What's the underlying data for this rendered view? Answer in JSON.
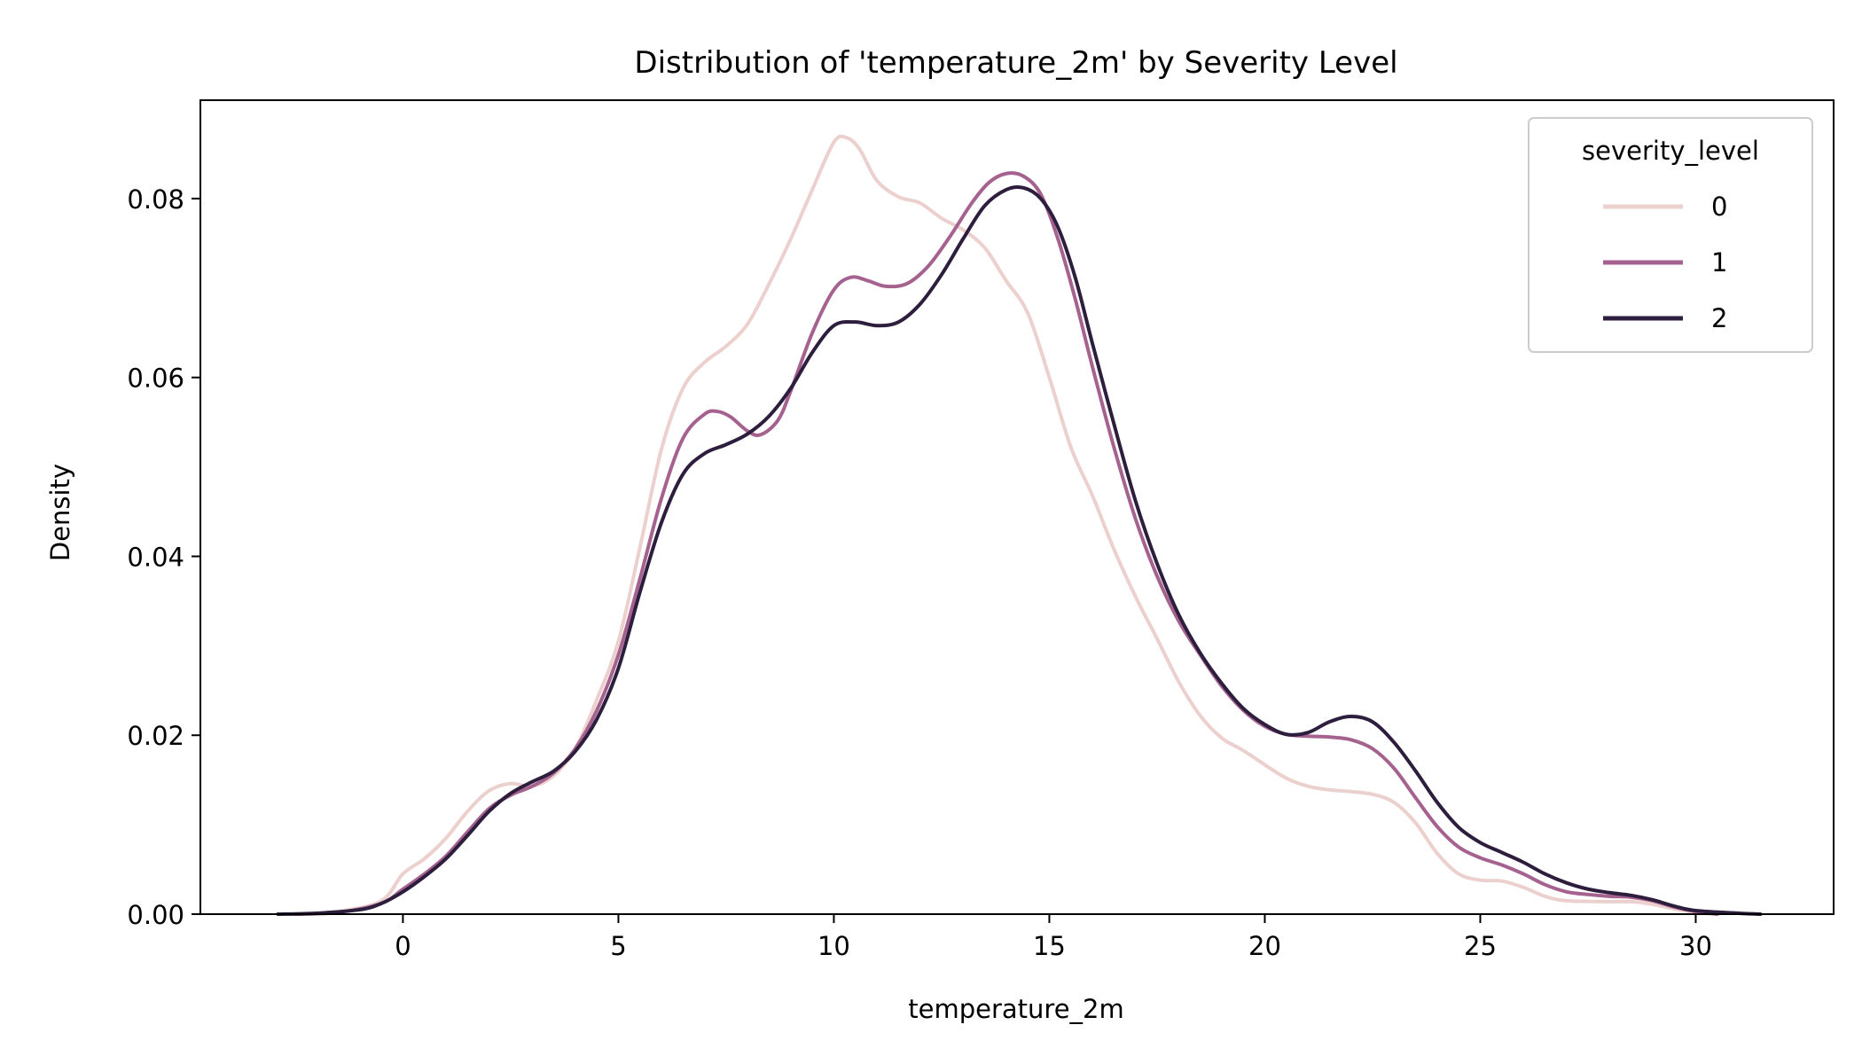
{
  "chart_data": {
    "type": "line",
    "title": "Distribution of 'temperature_2m' by Severity Level",
    "xlabel": "temperature_2m",
    "ylabel": "Density",
    "xlim": [
      -4.7,
      33.2
    ],
    "ylim": [
      0,
      0.091
    ],
    "xticks": [
      0,
      5,
      10,
      15,
      20,
      25,
      30
    ],
    "yticks": [
      0.0,
      0.02,
      0.04,
      0.06,
      0.08
    ],
    "ytick_labels": [
      "0.00",
      "0.02",
      "0.04",
      "0.06",
      "0.08"
    ],
    "grid": false,
    "legend": {
      "title": "severity_level",
      "placement": "top-right"
    },
    "series": [
      {
        "name": "0",
        "color": "#ebd0cd",
        "points": [
          [
            -2.5,
            0.0
          ],
          [
            -1.5,
            0.0003
          ],
          [
            -0.5,
            0.0015
          ],
          [
            0.0,
            0.0045
          ],
          [
            0.5,
            0.0062
          ],
          [
            1.0,
            0.0085
          ],
          [
            1.5,
            0.0115
          ],
          [
            2.0,
            0.0138
          ],
          [
            2.5,
            0.0146
          ],
          [
            3.0,
            0.0143
          ],
          [
            3.5,
            0.0155
          ],
          [
            4.0,
            0.0185
          ],
          [
            4.5,
            0.024
          ],
          [
            5.0,
            0.0305
          ],
          [
            5.5,
            0.041
          ],
          [
            6.0,
            0.052
          ],
          [
            6.5,
            0.0588
          ],
          [
            7.0,
            0.0617
          ],
          [
            7.5,
            0.0635
          ],
          [
            8.0,
            0.066
          ],
          [
            8.5,
            0.0705
          ],
          [
            9.0,
            0.0755
          ],
          [
            9.5,
            0.081
          ],
          [
            10.0,
            0.0863
          ],
          [
            10.3,
            0.0868
          ],
          [
            10.6,
            0.0855
          ],
          [
            11.0,
            0.082
          ],
          [
            11.5,
            0.0802
          ],
          [
            12.0,
            0.0795
          ],
          [
            12.5,
            0.0778
          ],
          [
            13.0,
            0.0765
          ],
          [
            13.5,
            0.0745
          ],
          [
            14.0,
            0.0708
          ],
          [
            14.5,
            0.0672
          ],
          [
            15.0,
            0.06
          ],
          [
            15.5,
            0.0522
          ],
          [
            16.0,
            0.0468
          ],
          [
            16.5,
            0.0408
          ],
          [
            17.0,
            0.0355
          ],
          [
            17.5,
            0.0308
          ],
          [
            18.0,
            0.026
          ],
          [
            18.5,
            0.0222
          ],
          [
            19.0,
            0.0197
          ],
          [
            19.5,
            0.0183
          ],
          [
            20.0,
            0.0167
          ],
          [
            20.5,
            0.0152
          ],
          [
            21.0,
            0.0143
          ],
          [
            21.5,
            0.0139
          ],
          [
            22.0,
            0.0137
          ],
          [
            22.5,
            0.0134
          ],
          [
            23.0,
            0.0125
          ],
          [
            23.5,
            0.0102
          ],
          [
            24.0,
            0.0068
          ],
          [
            24.5,
            0.0045
          ],
          [
            25.0,
            0.0038
          ],
          [
            25.5,
            0.0037
          ],
          [
            26.0,
            0.003
          ],
          [
            26.5,
            0.002
          ],
          [
            27.0,
            0.0015
          ],
          [
            28.0,
            0.0014
          ],
          [
            28.5,
            0.0014
          ],
          [
            29.0,
            0.0011
          ],
          [
            29.5,
            0.0006
          ],
          [
            30.0,
            0.0002
          ],
          [
            30.5,
            0.0
          ]
        ]
      },
      {
        "name": "1",
        "color": "#a6628f",
        "points": [
          [
            -2.5,
            0.0
          ],
          [
            -1.5,
            0.0002
          ],
          [
            -0.5,
            0.0012
          ],
          [
            0.0,
            0.0028
          ],
          [
            0.5,
            0.0045
          ],
          [
            1.0,
            0.0065
          ],
          [
            1.5,
            0.0092
          ],
          [
            2.0,
            0.0118
          ],
          [
            2.5,
            0.0133
          ],
          [
            3.0,
            0.0143
          ],
          [
            3.5,
            0.0158
          ],
          [
            4.0,
            0.0185
          ],
          [
            4.5,
            0.0228
          ],
          [
            5.0,
            0.029
          ],
          [
            5.5,
            0.0375
          ],
          [
            6.0,
            0.0465
          ],
          [
            6.5,
            0.0532
          ],
          [
            7.0,
            0.0559
          ],
          [
            7.3,
            0.0562
          ],
          [
            7.6,
            0.0556
          ],
          [
            8.0,
            0.054
          ],
          [
            8.3,
            0.0536
          ],
          [
            8.7,
            0.0552
          ],
          [
            9.0,
            0.0585
          ],
          [
            9.5,
            0.065
          ],
          [
            10.0,
            0.0698
          ],
          [
            10.4,
            0.0712
          ],
          [
            10.8,
            0.0708
          ],
          [
            11.2,
            0.0702
          ],
          [
            11.7,
            0.0705
          ],
          [
            12.2,
            0.0725
          ],
          [
            12.7,
            0.0758
          ],
          [
            13.2,
            0.0795
          ],
          [
            13.6,
            0.0818
          ],
          [
            14.0,
            0.0828
          ],
          [
            14.4,
            0.0825
          ],
          [
            14.8,
            0.0805
          ],
          [
            15.2,
            0.0755
          ],
          [
            15.6,
            0.0688
          ],
          [
            16.0,
            0.0612
          ],
          [
            16.5,
            0.0522
          ],
          [
            17.0,
            0.0442
          ],
          [
            17.5,
            0.0378
          ],
          [
            18.0,
            0.0328
          ],
          [
            18.5,
            0.029
          ],
          [
            19.0,
            0.0255
          ],
          [
            19.5,
            0.0228
          ],
          [
            20.0,
            0.021
          ],
          [
            20.5,
            0.0201
          ],
          [
            21.0,
            0.0199
          ],
          [
            21.5,
            0.0198
          ],
          [
            22.0,
            0.0195
          ],
          [
            22.5,
            0.0185
          ],
          [
            23.0,
            0.0163
          ],
          [
            23.5,
            0.013
          ],
          [
            24.0,
            0.0098
          ],
          [
            24.5,
            0.0075
          ],
          [
            25.0,
            0.0063
          ],
          [
            25.5,
            0.0055
          ],
          [
            26.0,
            0.0045
          ],
          [
            26.5,
            0.0033
          ],
          [
            27.0,
            0.0025
          ],
          [
            27.5,
            0.0022
          ],
          [
            28.0,
            0.002
          ],
          [
            28.5,
            0.0019
          ],
          [
            29.0,
            0.0015
          ],
          [
            29.5,
            0.0008
          ],
          [
            30.0,
            0.0003
          ],
          [
            30.5,
            0.0
          ]
        ]
      },
      {
        "name": "2",
        "color": "#2d1e3e",
        "points": [
          [
            -2.9,
            0.0
          ],
          [
            -2.0,
            0.0001
          ],
          [
            -1.0,
            0.0005
          ],
          [
            -0.5,
            0.0012
          ],
          [
            0.0,
            0.0025
          ],
          [
            0.5,
            0.0042
          ],
          [
            1.0,
            0.0062
          ],
          [
            1.5,
            0.0088
          ],
          [
            2.0,
            0.0115
          ],
          [
            2.5,
            0.0135
          ],
          [
            3.0,
            0.0148
          ],
          [
            3.5,
            0.016
          ],
          [
            4.0,
            0.0182
          ],
          [
            4.5,
            0.0218
          ],
          [
            5.0,
            0.0275
          ],
          [
            5.5,
            0.036
          ],
          [
            6.0,
            0.0438
          ],
          [
            6.5,
            0.0492
          ],
          [
            7.0,
            0.0515
          ],
          [
            7.5,
            0.0525
          ],
          [
            8.0,
            0.0537
          ],
          [
            8.5,
            0.0557
          ],
          [
            9.0,
            0.0588
          ],
          [
            9.5,
            0.0628
          ],
          [
            10.0,
            0.0658
          ],
          [
            10.5,
            0.0662
          ],
          [
            11.0,
            0.0658
          ],
          [
            11.5,
            0.0662
          ],
          [
            12.0,
            0.0682
          ],
          [
            12.5,
            0.0715
          ],
          [
            13.0,
            0.0755
          ],
          [
            13.5,
            0.0792
          ],
          [
            14.0,
            0.081
          ],
          [
            14.4,
            0.0812
          ],
          [
            14.8,
            0.08
          ],
          [
            15.2,
            0.0768
          ],
          [
            15.6,
            0.0712
          ],
          [
            16.0,
            0.0638
          ],
          [
            16.5,
            0.0548
          ],
          [
            17.0,
            0.0462
          ],
          [
            17.5,
            0.0392
          ],
          [
            18.0,
            0.0335
          ],
          [
            18.5,
            0.0292
          ],
          [
            19.0,
            0.0258
          ],
          [
            19.5,
            0.023
          ],
          [
            20.0,
            0.0212
          ],
          [
            20.5,
            0.0201
          ],
          [
            21.0,
            0.0203
          ],
          [
            21.5,
            0.0215
          ],
          [
            22.0,
            0.0221
          ],
          [
            22.5,
            0.0215
          ],
          [
            23.0,
            0.0192
          ],
          [
            23.5,
            0.016
          ],
          [
            24.0,
            0.0125
          ],
          [
            24.5,
            0.0097
          ],
          [
            25.0,
            0.008
          ],
          [
            25.5,
            0.0069
          ],
          [
            26.0,
            0.0058
          ],
          [
            26.5,
            0.0045
          ],
          [
            27.0,
            0.0035
          ],
          [
            27.5,
            0.0028
          ],
          [
            28.0,
            0.0024
          ],
          [
            28.5,
            0.0021
          ],
          [
            29.0,
            0.0016
          ],
          [
            29.5,
            0.0009
          ],
          [
            30.0,
            0.0004
          ],
          [
            31.0,
            0.0001
          ],
          [
            31.5,
            0.0
          ]
        ]
      }
    ]
  }
}
